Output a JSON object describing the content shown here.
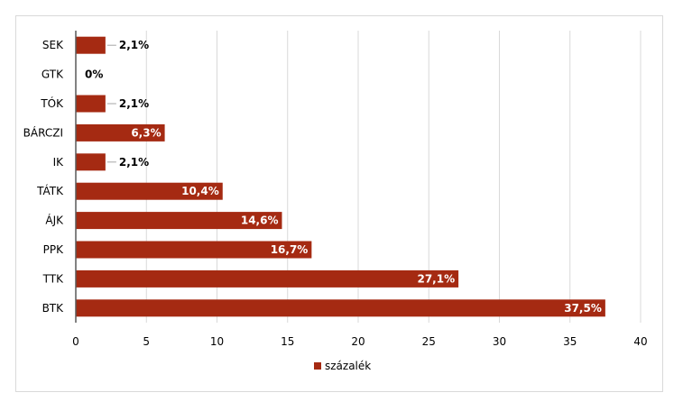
{
  "chart_data": {
    "type": "bar",
    "orientation": "horizontal",
    "categories": [
      "SEK",
      "GTK",
      "TÓK",
      "BÁRCZI",
      "IK",
      "TÁTK",
      "ÁJK",
      "PPK",
      "TTK",
      "BTK"
    ],
    "values": [
      2.1,
      0,
      2.1,
      6.3,
      2.1,
      10.4,
      14.6,
      16.7,
      27.1,
      37.5
    ],
    "data_labels": [
      "2,1%",
      "0%",
      "2,1%",
      "6,3%",
      "2,1%",
      "10,4%",
      "14,6%",
      "16,7%",
      "27,1%",
      "37,5%"
    ],
    "series": [
      {
        "name": "százalék",
        "values": [
          2.1,
          0,
          2.1,
          6.3,
          2.1,
          10.4,
          14.6,
          16.7,
          27.1,
          37.5
        ]
      }
    ],
    "xlim": [
      0,
      40
    ],
    "xticks": [
      0,
      5,
      10,
      15,
      20,
      25,
      30,
      35,
      40
    ],
    "xtick_labels": [
      "0",
      "5",
      "10",
      "15",
      "20",
      "25",
      "30",
      "35",
      "40"
    ],
    "grid": "vertical",
    "legend": "bottom",
    "title": "",
    "xlabel": "",
    "ylabel": ""
  },
  "colors": {
    "bar": "#a52a12",
    "grid": "#d9d9d9",
    "axis": "#595959"
  }
}
